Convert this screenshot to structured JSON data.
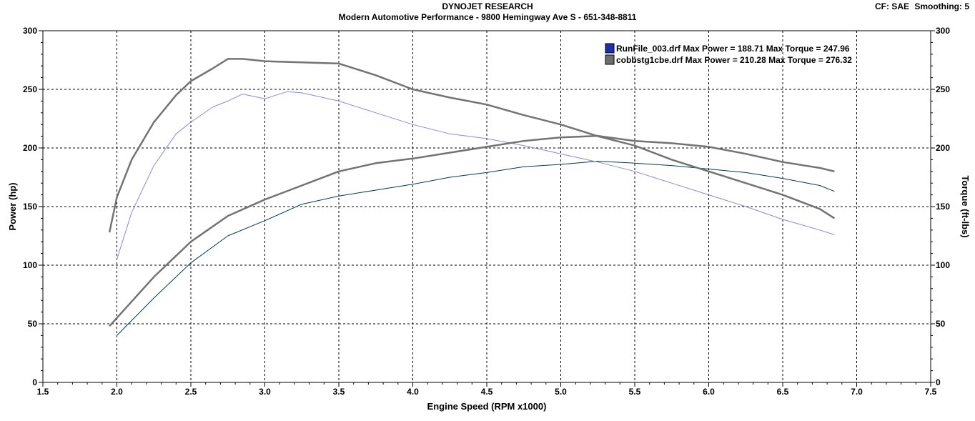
{
  "header": {
    "title": "DYNOJET RESEARCH",
    "subtitle": "Modern Automotive Performance - 9800 Hemingway Ave S - 651-348-8811",
    "cf_label": "CF: SAE",
    "smoothing_label": "Smoothing: 5"
  },
  "chart_data": {
    "type": "line",
    "title": "DYNOJET RESEARCH",
    "xlabel": "Engine Speed (RPM x1000)",
    "ylabel_left": "Power (hp)",
    "ylabel_right": "Torque (ft-lbs)",
    "xlim": [
      1.5,
      7.5
    ],
    "ylim": [
      0,
      300
    ],
    "x_ticks": [
      "1.5",
      "2.0",
      "2.5",
      "3.0",
      "3.5",
      "4.0",
      "4.5",
      "5.0",
      "5.5",
      "6.0",
      "6.5",
      "7.0",
      "7.5"
    ],
    "y_ticks": [
      "0",
      "50",
      "100",
      "150",
      "200",
      "250",
      "300"
    ],
    "grid": true,
    "legend_position": "top-right",
    "legend": [
      {
        "text": "RunFile_003.drf Max Power = 188.71 Max Torque = 247.96",
        "color": "#1a2fa8"
      },
      {
        "text": "cobbstg1cbe.drf Max Power = 210.28 Max Torque = 276.32",
        "color": "#6e6e6e"
      }
    ],
    "series": [
      {
        "file": "RunFile_003.drf",
        "measure": "Power",
        "color": "#003c55",
        "width": 1,
        "x": [
          2.0,
          2.25,
          2.5,
          2.75,
          3.0,
          3.25,
          3.5,
          3.75,
          4.0,
          4.25,
          4.5,
          4.75,
          5.0,
          5.25,
          5.5,
          5.75,
          6.0,
          6.25,
          6.5,
          6.75,
          6.85
        ],
        "y": [
          40,
          72,
          102,
          125,
          138,
          152,
          159,
          164,
          169,
          175,
          179,
          184,
          186,
          188.7,
          187,
          185,
          182,
          179,
          174,
          168,
          163
        ]
      },
      {
        "file": "RunFile_003.drf",
        "measure": "Torque",
        "color": "#8a88dc",
        "width": 1,
        "x": [
          2.0,
          2.1,
          2.25,
          2.4,
          2.5,
          2.65,
          2.75,
          2.85,
          3.0,
          3.15,
          3.25,
          3.5,
          3.75,
          4.0,
          4.25,
          4.5,
          4.75,
          5.0,
          5.25,
          5.5,
          5.75,
          6.0,
          6.25,
          6.5,
          6.75,
          6.85
        ],
        "y": [
          105,
          145,
          185,
          212,
          222,
          235,
          240,
          246,
          242,
          248,
          247,
          240,
          230,
          220,
          212,
          208,
          202,
          195,
          188,
          180,
          170,
          160,
          150,
          139,
          130,
          126
        ]
      },
      {
        "file": "cobbstg1cbe.drf",
        "measure": "Power",
        "color": "#737373",
        "width": 2.5,
        "x": [
          1.95,
          2.0,
          2.25,
          2.5,
          2.75,
          3.0,
          3.25,
          3.5,
          3.75,
          4.0,
          4.25,
          4.5,
          4.75,
          5.0,
          5.25,
          5.5,
          5.75,
          6.0,
          6.25,
          6.5,
          6.75,
          6.85
        ],
        "y": [
          48,
          55,
          90,
          120,
          142,
          156,
          168,
          180,
          187,
          191,
          196,
          201,
          206,
          209,
          210.3,
          206,
          204,
          201,
          195,
          188,
          183,
          180
        ]
      },
      {
        "file": "cobbstg1cbe.drf",
        "measure": "Torque",
        "color": "#737373",
        "width": 2.5,
        "x": [
          1.95,
          2.0,
          2.1,
          2.25,
          2.4,
          2.5,
          2.65,
          2.75,
          2.85,
          3.0,
          3.25,
          3.5,
          3.75,
          4.0,
          4.25,
          4.5,
          4.75,
          5.0,
          5.25,
          5.5,
          5.75,
          6.0,
          6.25,
          6.5,
          6.75,
          6.85
        ],
        "y": [
          128,
          158,
          190,
          222,
          245,
          257,
          268,
          276,
          276,
          274,
          273,
          272,
          262,
          250,
          243,
          237,
          228,
          220,
          210,
          202,
          190,
          180,
          170,
          160,
          148,
          140
        ]
      }
    ]
  }
}
